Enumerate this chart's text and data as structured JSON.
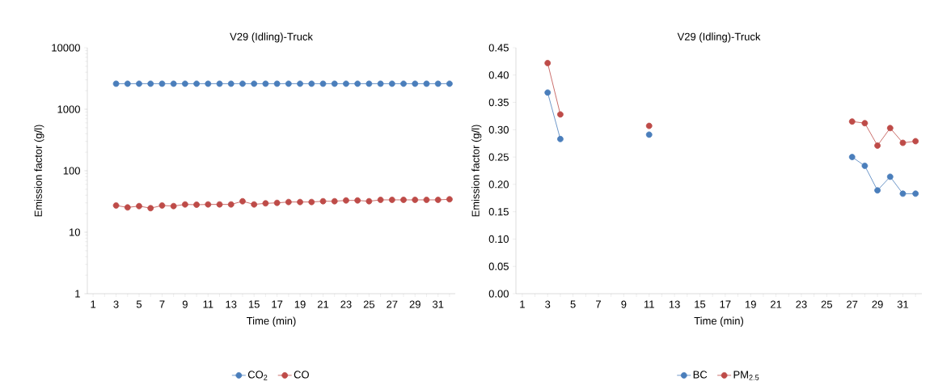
{
  "chart_data": [
    {
      "type": "line",
      "title": "V29 (Idling)-Truck",
      "xlabel": "Time (min)",
      "ylabel": "Emission factor (g/l)",
      "categories": [
        "1",
        null,
        "3",
        null,
        "5",
        null,
        "7",
        null,
        "9",
        null,
        "11",
        null,
        "13",
        null,
        "15",
        null,
        "17",
        null,
        "19",
        null,
        "21",
        null,
        "23",
        null,
        "25",
        null,
        "27",
        null,
        "29",
        null,
        "31",
        null
      ],
      "series": [
        {
          "name": "CO$_{2}$",
          "color": "#4a7ebb",
          "values": [
            null,
            null,
            2600,
            2600,
            2600,
            2600,
            2600,
            2600,
            2600,
            2600,
            2600,
            2600,
            2600,
            2600,
            2600,
            2600,
            2600,
            2600,
            2600,
            2600,
            2600,
            2600,
            2600,
            2600,
            2600,
            2600,
            2600,
            2600,
            2600,
            2600,
            2600,
            2600
          ]
        },
        {
          "name": "CO",
          "color": "#be4b48",
          "values": [
            null,
            null,
            27.2,
            25.3,
            26.6,
            24.6,
            27.2,
            26.6,
            28.3,
            28.0,
            28.3,
            28.3,
            28.3,
            31.9,
            28.3,
            29.5,
            30.0,
            31.0,
            31.0,
            31.0,
            31.9,
            31.9,
            32.9,
            32.9,
            31.9,
            33.6,
            33.6,
            33.6,
            33.6,
            33.6,
            33.6,
            34.3
          ]
        }
      ],
      "log": true,
      "ylim": [
        1,
        10000
      ],
      "yticks": [
        1,
        10,
        100,
        1000,
        10000
      ],
      "legend": "bottom",
      "marker": "circle"
    },
    {
      "type": "line",
      "title": "V29 (Idling)-Truck",
      "xlabel": "Time (min)",
      "ylabel": "Emission factor (g/l)",
      "categories": [
        "1",
        null,
        "3",
        null,
        "5",
        null,
        "7",
        null,
        "9",
        null,
        "11",
        null,
        "13",
        null,
        "15",
        null,
        "17",
        null,
        "19",
        null,
        "21",
        null,
        "23",
        null,
        "25",
        null,
        "27",
        null,
        "29",
        null,
        "31",
        null
      ],
      "series": [
        {
          "name": "BC",
          "color": "#4a7ebb",
          "values": [
            null,
            null,
            0.368,
            0.283,
            null,
            null,
            null,
            null,
            null,
            null,
            0.291,
            null,
            null,
            null,
            null,
            null,
            null,
            null,
            null,
            null,
            null,
            null,
            null,
            null,
            null,
            null,
            0.25,
            0.234,
            0.189,
            0.214,
            0.183,
            0.183
          ]
        },
        {
          "name": "PM$_{2.5}$",
          "color": "#be4b48",
          "values": [
            null,
            null,
            0.422,
            0.328,
            null,
            null,
            null,
            null,
            null,
            null,
            0.307,
            null,
            null,
            null,
            null,
            null,
            null,
            null,
            null,
            null,
            null,
            null,
            null,
            null,
            null,
            null,
            0.315,
            0.312,
            0.271,
            0.303,
            0.276,
            0.279
          ]
        }
      ],
      "ylim": [
        0,
        0.45
      ],
      "yticks": [
        {
          "value": 0,
          "label": "0.00"
        },
        {
          "value": 0.05,
          "label": "0.05"
        },
        {
          "value": 0.1,
          "label": "0.10"
        },
        {
          "value": 0.15,
          "label": "0.15"
        },
        {
          "value": 0.2,
          "label": "0.20"
        },
        {
          "value": 0.25,
          "label": "0.25"
        },
        {
          "value": 0.3,
          "label": "0.30"
        },
        {
          "value": 0.35,
          "label": "0.35"
        },
        {
          "value": 0.4,
          "label": "0.40"
        },
        {
          "value": 0.45,
          "label": "0.45"
        }
      ],
      "legend": "bottom",
      "marker": "circle"
    }
  ]
}
